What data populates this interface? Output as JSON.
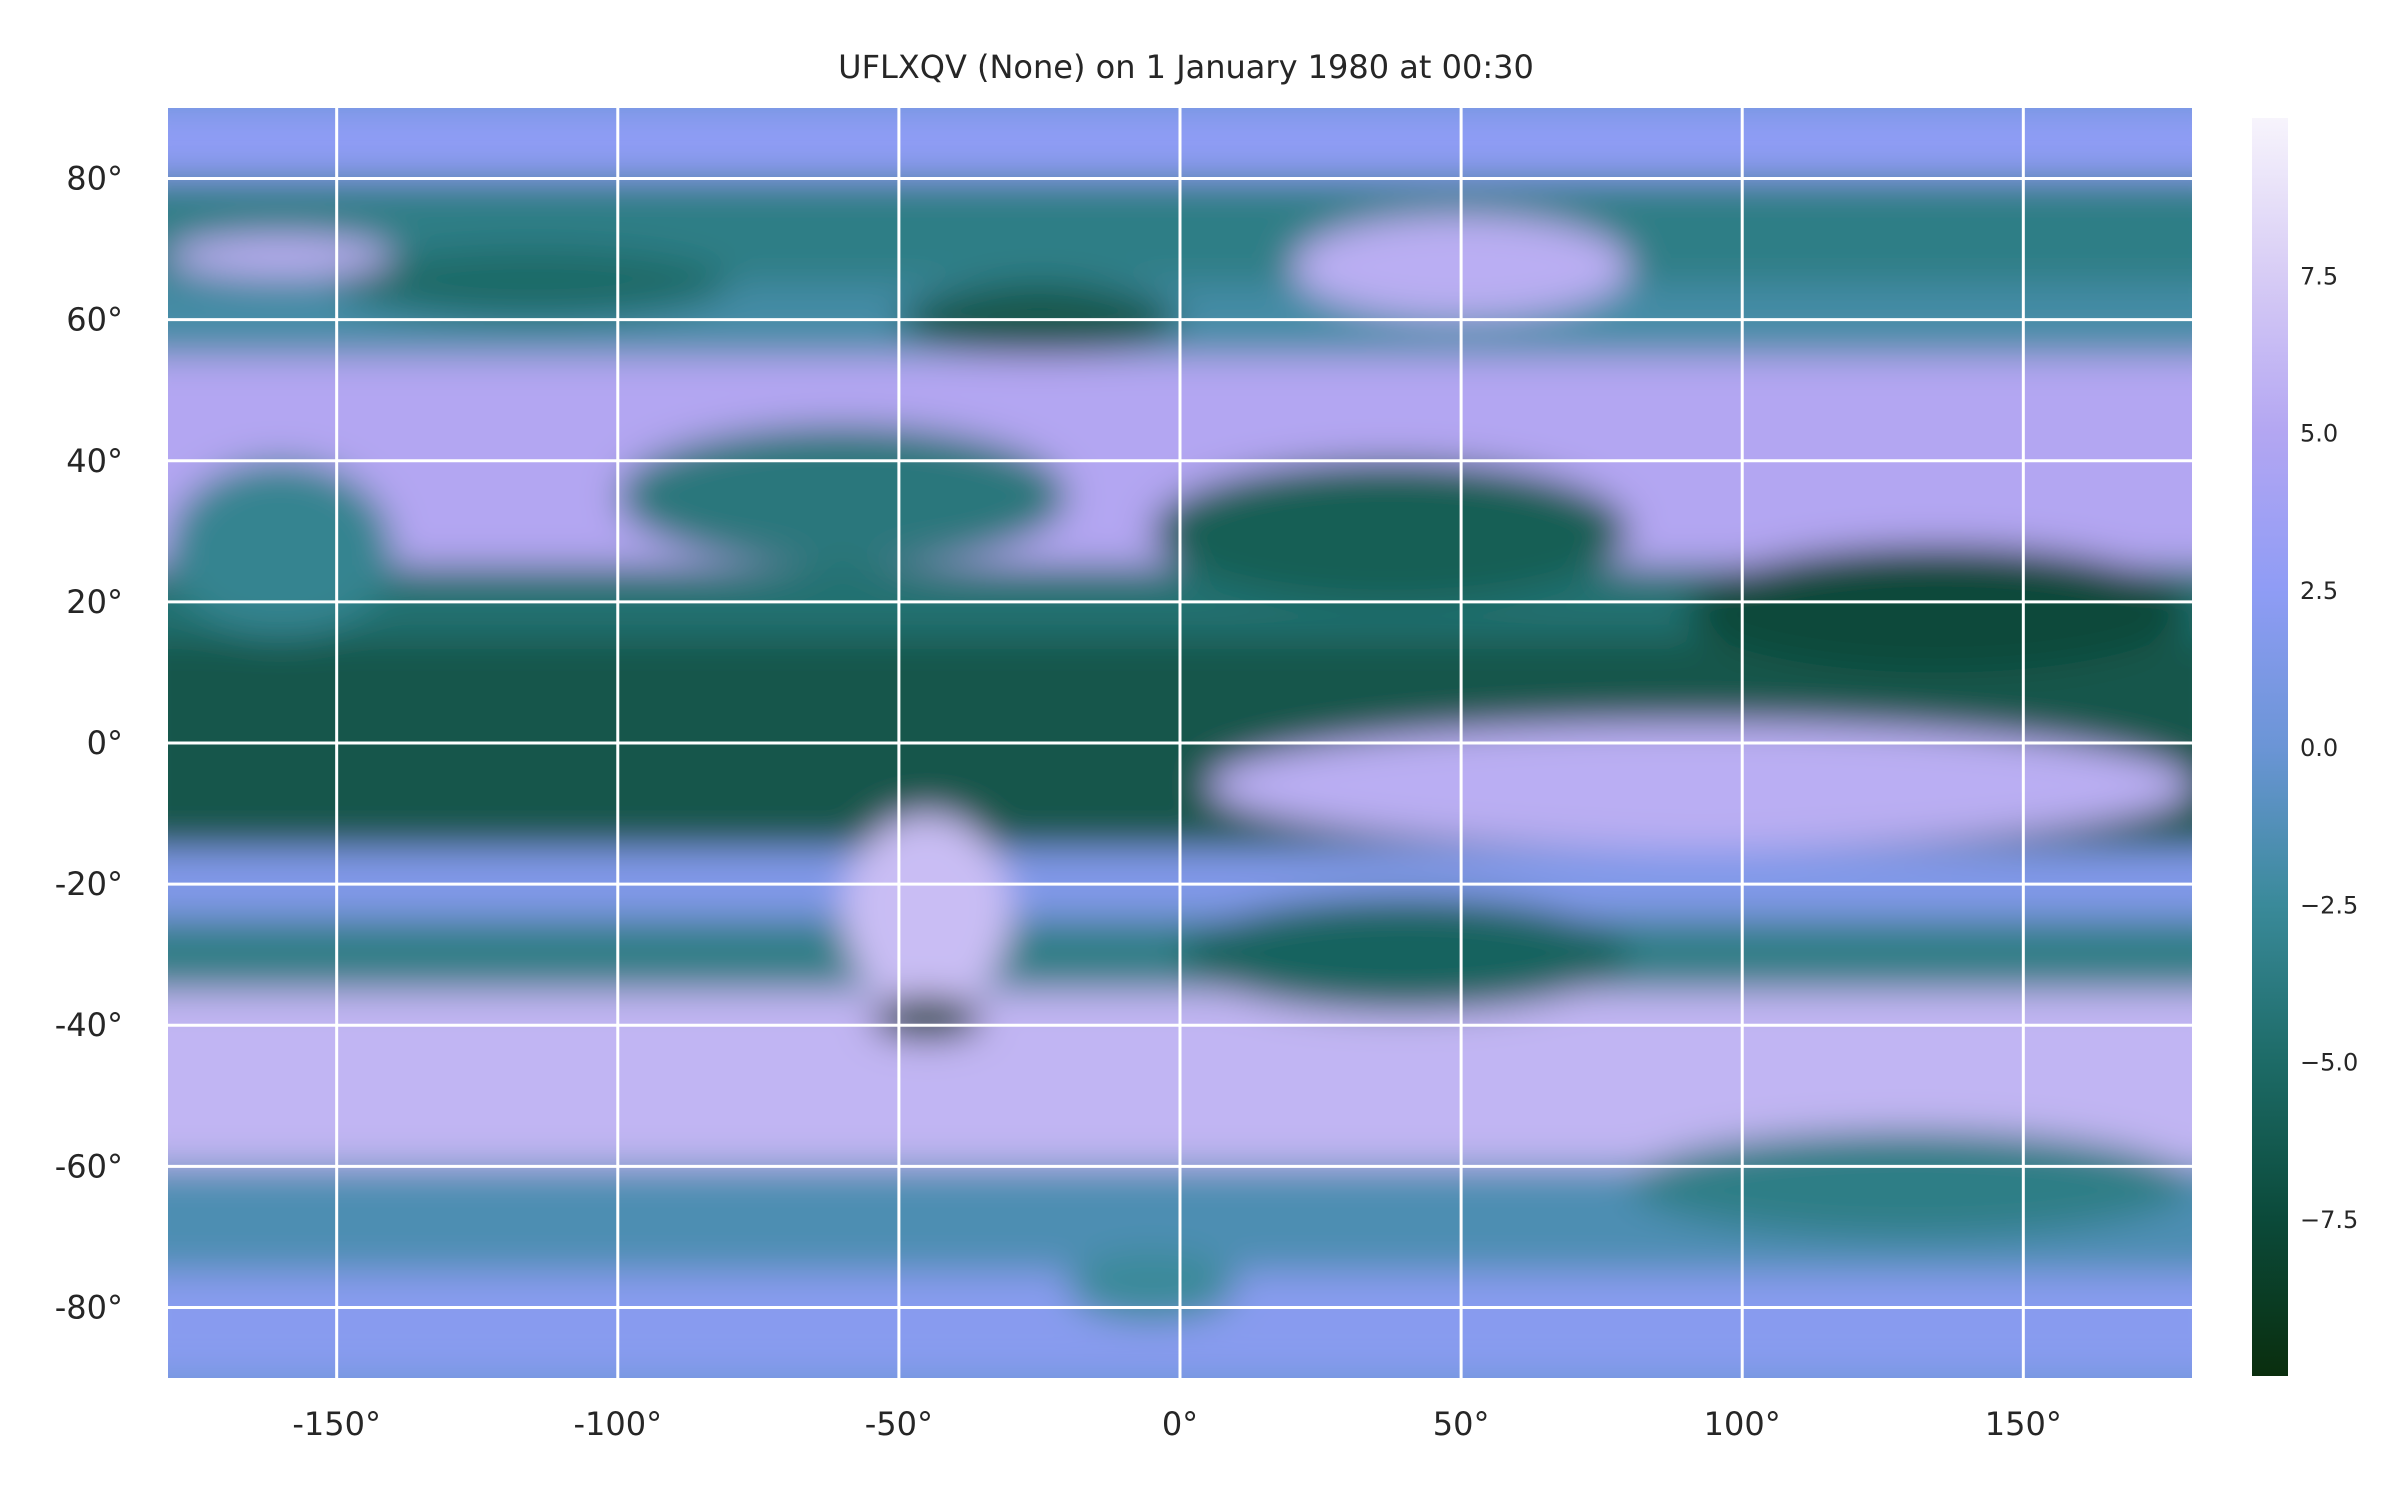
{
  "chart_data": {
    "type": "heatmap",
    "title": "UFLXQV (None) on 1 January 1980 at 00:30",
    "xlabel": "",
    "ylabel": "",
    "x_ticks": [
      -150,
      -100,
      -50,
      0,
      50,
      100,
      150
    ],
    "x_tick_labels": [
      "-150°",
      "-100°",
      "-50°",
      "0°",
      "50°",
      "100°",
      "150°"
    ],
    "y_ticks": [
      80,
      60,
      40,
      20,
      0,
      -20,
      -40,
      -60,
      -80
    ],
    "y_tick_labels": [
      "80°",
      "60°",
      "40°",
      "20°",
      "0°",
      "-20°",
      "-40°",
      "-60°",
      "-80°"
    ],
    "xlim": [
      -180,
      180
    ],
    "ylim": [
      -90,
      90
    ],
    "grid": true,
    "colorbar": {
      "range": [
        -10,
        10
      ],
      "ticks": [
        7.5,
        5.0,
        2.5,
        0.0,
        -2.5,
        -5.0,
        -7.5
      ],
      "tick_labels": [
        "7.5",
        "5.0",
        "2.5",
        "0.0",
        "−2.5",
        "−5.0",
        "−7.5"
      ],
      "colormap": [
        "#0a2e0e",
        "#0b4a3a",
        "#1d6b67",
        "#3a8a9a",
        "#6b95d6",
        "#8f9cf5",
        "#b3a6f2",
        "#d7ccf5",
        "#f7f4fc"
      ]
    },
    "field_bands": [
      {
        "lat": [
          80,
          90
        ],
        "value": 2.5
      },
      {
        "lat": [
          65,
          80
        ],
        "value": -3.5
      },
      {
        "lat": [
          55,
          65
        ],
        "value": -2.0
      },
      {
        "lat": [
          25,
          55
        ],
        "value": 5.0
      },
      {
        "lat": [
          15,
          25
        ],
        "value": -4.5
      },
      {
        "lat": [
          -15,
          15
        ],
        "value": -6.5
      },
      {
        "lat": [
          -25,
          -15
        ],
        "value": 1.5
      },
      {
        "lat": [
          -35,
          -25
        ],
        "value": -3.5
      },
      {
        "lat": [
          -60,
          -35
        ],
        "value": 6.0
      },
      {
        "lat": [
          -75,
          -60
        ],
        "value": -1.5
      },
      {
        "lat": [
          -90,
          -75
        ],
        "value": 2.0
      }
    ],
    "features": [
      {
        "lon": [
          -180,
          -140
        ],
        "lat": [
          15,
          40
        ],
        "value": -3.0
      },
      {
        "lon": [
          -5,
          80
        ],
        "lat": [
          20,
          40
        ],
        "value": -6.0
      },
      {
        "lon": [
          -100,
          -20
        ],
        "lat": [
          25,
          45
        ],
        "value": -4.0
      },
      {
        "lon": [
          90,
          180
        ],
        "lat": [
          10,
          28
        ],
        "value": -7.5
      },
      {
        "lon": [
          5,
          180
        ],
        "lat": [
          -15,
          3
        ],
        "value": 5.5
      },
      {
        "lon": [
          -60,
          -30
        ],
        "lat": [
          -38,
          -10
        ],
        "value": 6.5
      },
      {
        "lon": [
          -55,
          -35
        ],
        "lat": [
          -42,
          -36
        ],
        "value": -8.5
      },
      {
        "lon": [
          0,
          80
        ],
        "lat": [
          -38,
          -22
        ],
        "value": -5.5
      },
      {
        "lon": [
          -150,
          -80
        ],
        "lat": [
          60,
          70
        ],
        "value": -5.0
      },
      {
        "lon": [
          -50,
          0
        ],
        "lat": [
          55,
          65
        ],
        "value": -6.5
      },
      {
        "lon": [
          80,
          180
        ],
        "lat": [
          -70,
          -55
        ],
        "value": -3.5
      },
      {
        "lon": [
          -180,
          -140
        ],
        "lat": [
          66,
          72
        ],
        "value": 5.5
      },
      {
        "lon": [
          20,
          80
        ],
        "lat": [
          60,
          75
        ],
        "value": 5.5
      },
      {
        "lon": [
          -20,
          10
        ],
        "lat": [
          -82,
          -72
        ],
        "value": -2.5
      }
    ]
  }
}
